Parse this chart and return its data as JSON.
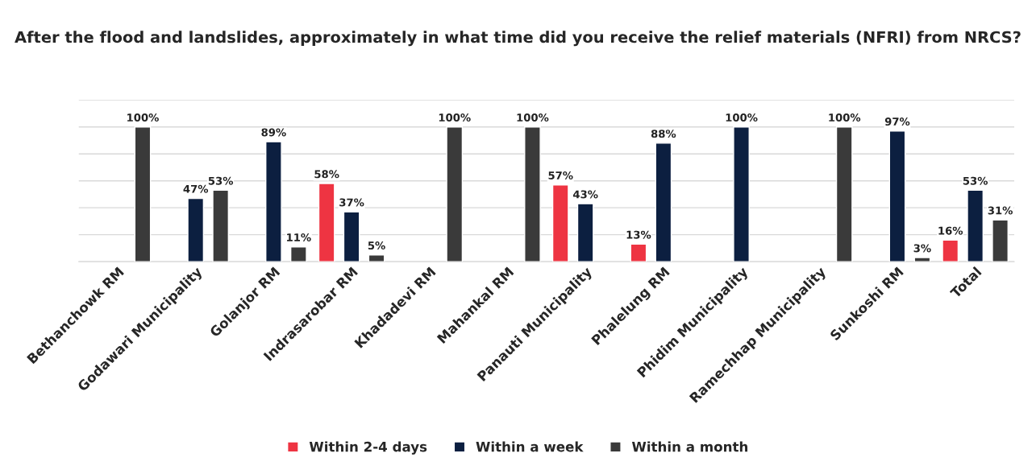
{
  "chart_data": {
    "type": "bar",
    "title": "After the flood and landslides, approximately in what time did you receive the relief materials (NFRI) from NRCS?",
    "categories": [
      "Bethanchowk RM",
      "Godawari Municipality",
      "Golanjor RM",
      "Indrasarobar RM",
      "Khadadevi RM",
      "Mahankal RM",
      "Panauti Municipality",
      "Phalelung RM",
      "Phidim Municipality",
      "Ramechhap Municipality",
      "Sunkoshi RM",
      "Total"
    ],
    "series": [
      {
        "name": "Within 2-4 days",
        "color": "#ee3442",
        "values": [
          null,
          null,
          null,
          58,
          null,
          null,
          57,
          13,
          null,
          null,
          null,
          16
        ],
        "value_labels": [
          null,
          null,
          null,
          "58%",
          null,
          null,
          "57%",
          "13%",
          null,
          null,
          null,
          "16%"
        ]
      },
      {
        "name": "Within a week",
        "color": "#0c1f40",
        "values": [
          null,
          47,
          89,
          37,
          null,
          null,
          43,
          88,
          100,
          null,
          97,
          53
        ],
        "value_labels": [
          null,
          "47%",
          "89%",
          "37%",
          null,
          null,
          "43%",
          "88%",
          "100%",
          null,
          "97%",
          "53%"
        ]
      },
      {
        "name": "Within a month",
        "color": "#3a3a3a",
        "values": [
          100,
          53,
          11,
          5,
          100,
          100,
          null,
          null,
          null,
          100,
          3,
          31
        ],
        "value_labels": [
          "100%",
          "53%",
          "11%",
          "5%",
          "100%",
          "100%",
          null,
          null,
          null,
          "100%",
          "3%",
          "31%"
        ]
      }
    ],
    "ylim": [
      0,
      120
    ],
    "yticks": [
      {
        "value": 0,
        "label": null
      },
      {
        "value": 20,
        "label": null
      },
      {
        "value": 40,
        "label": null
      },
      {
        "value": 60,
        "label": null
      },
      {
        "value": 80,
        "label": null
      },
      {
        "value": 100,
        "label": null
      },
      {
        "value": 120,
        "label": null
      }
    ],
    "tick_labels": "x",
    "grid": "y",
    "legend": "bottom"
  }
}
